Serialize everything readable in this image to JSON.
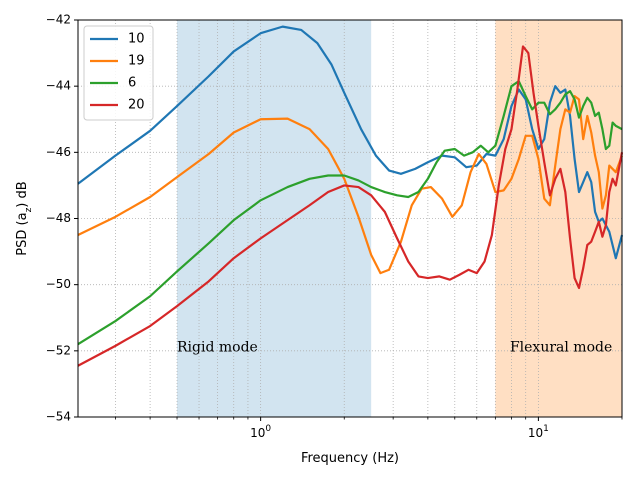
{
  "chart_data": {
    "type": "line",
    "xscale": "log",
    "xlabel": "Frequency (Hz)",
    "ylabel_main": "PSD (a",
    "ylabel_sub": "z",
    "ylabel_tail": ") dB",
    "xlim": [
      0.22,
      20
    ],
    "ylim": [
      -54,
      -42
    ],
    "x_ticks": [
      {
        "value": 1,
        "base": "10",
        "exp": "0"
      },
      {
        "value": 10,
        "base": "10",
        "exp": "1"
      }
    ],
    "y_ticks": [
      {
        "value": -42,
        "label": "−42"
      },
      {
        "value": -44,
        "label": "−44"
      },
      {
        "value": -46,
        "label": "−46"
      },
      {
        "value": -48,
        "label": "−48"
      },
      {
        "value": -50,
        "label": "−50"
      },
      {
        "value": -52,
        "label": "−52"
      },
      {
        "value": -54,
        "label": "−54"
      }
    ],
    "grid": true,
    "legend_position": "top-left",
    "regions": [
      {
        "name": "Rigid mode",
        "x0": 0.5,
        "x1": 2.5,
        "color": "#1f77b4",
        "opacity": 0.2,
        "label_x": 0.5,
        "label_y": -51.9
      },
      {
        "name": "Flexural mode",
        "x0": 7,
        "x1": 20,
        "color": "#ff7f0e",
        "opacity": 0.25,
        "label_x": 7.9,
        "label_y": -51.9
      }
    ],
    "series": [
      {
        "name": "10",
        "color": "#1f77b4",
        "points": [
          [
            0.22,
            -46.95
          ],
          [
            0.3,
            -46.1
          ],
          [
            0.4,
            -45.35
          ],
          [
            0.5,
            -44.6
          ],
          [
            0.65,
            -43.7
          ],
          [
            0.8,
            -42.95
          ],
          [
            1.0,
            -42.4
          ],
          [
            1.2,
            -42.2
          ],
          [
            1.4,
            -42.3
          ],
          [
            1.6,
            -42.7
          ],
          [
            1.8,
            -43.35
          ],
          [
            2.0,
            -44.2
          ],
          [
            2.3,
            -45.3
          ],
          [
            2.6,
            -46.1
          ],
          [
            2.9,
            -46.55
          ],
          [
            3.2,
            -46.65
          ],
          [
            3.6,
            -46.5
          ],
          [
            4.0,
            -46.3
          ],
          [
            4.5,
            -46.1
          ],
          [
            5.0,
            -46.15
          ],
          [
            5.5,
            -46.45
          ],
          [
            6.0,
            -46.4
          ],
          [
            6.5,
            -46.05
          ],
          [
            7.0,
            -46.1
          ],
          [
            7.5,
            -45.6
          ],
          [
            8.0,
            -44.6
          ],
          [
            8.5,
            -44.1
          ],
          [
            9.0,
            -44.4
          ],
          [
            9.5,
            -45.3
          ],
          [
            10.0,
            -45.9
          ],
          [
            10.5,
            -45.6
          ],
          [
            11.0,
            -44.5
          ],
          [
            11.5,
            -44.0
          ],
          [
            12.0,
            -44.2
          ],
          [
            12.5,
            -44.1
          ],
          [
            13.0,
            -44.9
          ],
          [
            13.5,
            -46.2
          ],
          [
            14.0,
            -47.2
          ],
          [
            14.5,
            -46.9
          ],
          [
            15.0,
            -46.6
          ],
          [
            15.5,
            -46.9
          ],
          [
            16.0,
            -47.8
          ],
          [
            16.5,
            -48.1
          ],
          [
            17.0,
            -48.0
          ],
          [
            18.0,
            -48.4
          ],
          [
            19.0,
            -49.2
          ],
          [
            20.0,
            -48.5
          ]
        ]
      },
      {
        "name": "19",
        "color": "#ff7f0e",
        "points": [
          [
            0.22,
            -48.5
          ],
          [
            0.3,
            -47.95
          ],
          [
            0.4,
            -47.35
          ],
          [
            0.5,
            -46.75
          ],
          [
            0.65,
            -46.05
          ],
          [
            0.8,
            -45.4
          ],
          [
            1.0,
            -45.0
          ],
          [
            1.25,
            -44.98
          ],
          [
            1.5,
            -45.3
          ],
          [
            1.75,
            -45.9
          ],
          [
            2.0,
            -46.8
          ],
          [
            2.25,
            -47.95
          ],
          [
            2.5,
            -49.1
          ],
          [
            2.7,
            -49.65
          ],
          [
            2.9,
            -49.55
          ],
          [
            3.2,
            -48.7
          ],
          [
            3.5,
            -47.6
          ],
          [
            3.8,
            -47.1
          ],
          [
            4.1,
            -47.05
          ],
          [
            4.5,
            -47.4
          ],
          [
            4.9,
            -47.95
          ],
          [
            5.3,
            -47.6
          ],
          [
            5.7,
            -46.6
          ],
          [
            6.1,
            -46.05
          ],
          [
            6.5,
            -46.35
          ],
          [
            7.0,
            -47.2
          ],
          [
            7.5,
            -47.15
          ],
          [
            8.0,
            -46.8
          ],
          [
            8.5,
            -46.2
          ],
          [
            9.0,
            -45.5
          ],
          [
            9.5,
            -45.5
          ],
          [
            10.0,
            -46.2
          ],
          [
            10.5,
            -47.4
          ],
          [
            11.0,
            -47.6
          ],
          [
            11.5,
            -46.4
          ],
          [
            12.0,
            -45.3
          ],
          [
            12.5,
            -44.7
          ],
          [
            13.0,
            -44.8
          ],
          [
            13.5,
            -44.3
          ],
          [
            14.0,
            -44.4
          ],
          [
            14.5,
            -45.6
          ],
          [
            15.0,
            -44.9
          ],
          [
            15.5,
            -45.4
          ],
          [
            16.0,
            -46.1
          ],
          [
            16.5,
            -46.6
          ],
          [
            17.0,
            -47.7
          ],
          [
            17.5,
            -47.3
          ],
          [
            18.0,
            -46.4
          ],
          [
            19.0,
            -46.6
          ],
          [
            20.0,
            -46.1
          ]
        ]
      },
      {
        "name": "6",
        "color": "#2ca02c",
        "points": [
          [
            0.22,
            -51.8
          ],
          [
            0.3,
            -51.1
          ],
          [
            0.4,
            -50.35
          ],
          [
            0.5,
            -49.6
          ],
          [
            0.65,
            -48.75
          ],
          [
            0.8,
            -48.05
          ],
          [
            1.0,
            -47.45
          ],
          [
            1.25,
            -47.05
          ],
          [
            1.5,
            -46.8
          ],
          [
            1.75,
            -46.7
          ],
          [
            2.0,
            -46.7
          ],
          [
            2.25,
            -46.85
          ],
          [
            2.5,
            -47.05
          ],
          [
            2.8,
            -47.2
          ],
          [
            3.1,
            -47.3
          ],
          [
            3.4,
            -47.35
          ],
          [
            3.7,
            -47.2
          ],
          [
            4.0,
            -46.8
          ],
          [
            4.3,
            -46.3
          ],
          [
            4.6,
            -45.95
          ],
          [
            5.0,
            -45.9
          ],
          [
            5.4,
            -46.1
          ],
          [
            5.8,
            -46.0
          ],
          [
            6.2,
            -45.8
          ],
          [
            6.6,
            -46.0
          ],
          [
            7.0,
            -45.8
          ],
          [
            7.5,
            -44.9
          ],
          [
            8.0,
            -44.0
          ],
          [
            8.5,
            -43.85
          ],
          [
            9.0,
            -44.3
          ],
          [
            9.5,
            -44.7
          ],
          [
            10.0,
            -44.5
          ],
          [
            10.5,
            -44.5
          ],
          [
            11.0,
            -44.85
          ],
          [
            11.5,
            -44.7
          ],
          [
            12.0,
            -44.5
          ],
          [
            12.5,
            -44.25
          ],
          [
            13.0,
            -44.15
          ],
          [
            13.5,
            -44.4
          ],
          [
            14.0,
            -44.95
          ],
          [
            14.5,
            -44.6
          ],
          [
            15.0,
            -44.35
          ],
          [
            15.5,
            -44.5
          ],
          [
            16.0,
            -44.9
          ],
          [
            16.5,
            -44.8
          ],
          [
            17.0,
            -45.3
          ],
          [
            17.5,
            -45.9
          ],
          [
            18.0,
            -45.8
          ],
          [
            18.5,
            -45.1
          ],
          [
            19.0,
            -45.2
          ],
          [
            20.0,
            -45.3
          ]
        ]
      },
      {
        "name": "20",
        "color": "#d62728",
        "points": [
          [
            0.22,
            -52.45
          ],
          [
            0.3,
            -51.85
          ],
          [
            0.4,
            -51.25
          ],
          [
            0.5,
            -50.65
          ],
          [
            0.65,
            -49.9
          ],
          [
            0.8,
            -49.2
          ],
          [
            1.0,
            -48.6
          ],
          [
            1.25,
            -48.05
          ],
          [
            1.5,
            -47.6
          ],
          [
            1.75,
            -47.2
          ],
          [
            2.0,
            -47.0
          ],
          [
            2.25,
            -47.05
          ],
          [
            2.5,
            -47.3
          ],
          [
            2.8,
            -47.8
          ],
          [
            3.1,
            -48.6
          ],
          [
            3.4,
            -49.3
          ],
          [
            3.7,
            -49.75
          ],
          [
            4.0,
            -49.8
          ],
          [
            4.4,
            -49.75
          ],
          [
            4.8,
            -49.85
          ],
          [
            5.2,
            -49.7
          ],
          [
            5.6,
            -49.55
          ],
          [
            6.0,
            -49.65
          ],
          [
            6.4,
            -49.3
          ],
          [
            6.8,
            -48.5
          ],
          [
            7.2,
            -47.0
          ],
          [
            7.6,
            -45.9
          ],
          [
            8.0,
            -45.3
          ],
          [
            8.4,
            -44.1
          ],
          [
            8.8,
            -42.8
          ],
          [
            9.2,
            -43.0
          ],
          [
            9.6,
            -44.2
          ],
          [
            10.0,
            -45.2
          ],
          [
            10.5,
            -46.3
          ],
          [
            11.0,
            -47.3
          ],
          [
            11.5,
            -46.8
          ],
          [
            12.0,
            -46.5
          ],
          [
            12.5,
            -47.2
          ],
          [
            13.0,
            -48.6
          ],
          [
            13.5,
            -49.8
          ],
          [
            14.0,
            -50.1
          ],
          [
            14.5,
            -49.5
          ],
          [
            15.0,
            -48.8
          ],
          [
            15.5,
            -48.7
          ],
          [
            16.0,
            -48.4
          ],
          [
            16.5,
            -48.1
          ],
          [
            17.0,
            -48.55
          ],
          [
            17.5,
            -48.2
          ],
          [
            18.0,
            -47.2
          ],
          [
            18.5,
            -46.8
          ],
          [
            19.0,
            -47.0
          ],
          [
            20.0,
            -46.0
          ]
        ]
      }
    ]
  }
}
